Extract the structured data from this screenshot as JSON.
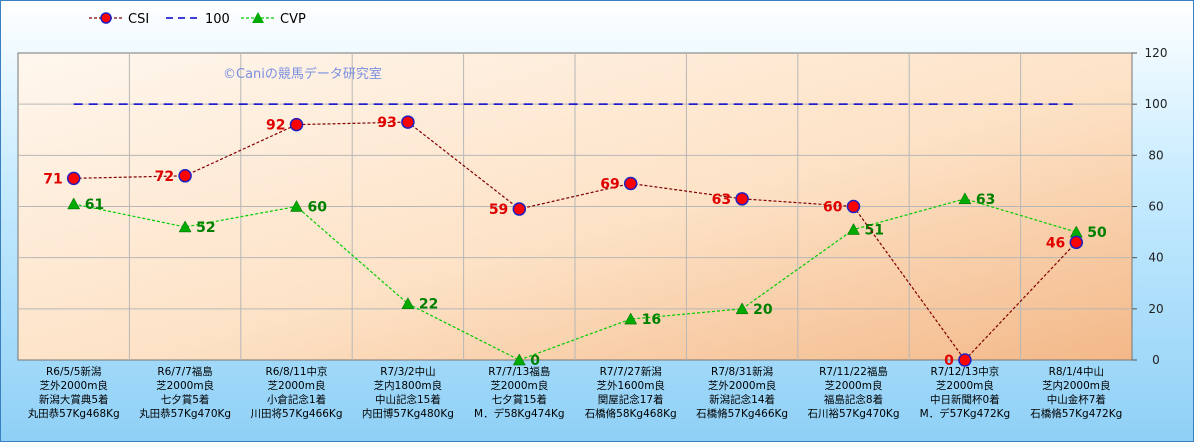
{
  "chart_data": {
    "type": "line",
    "watermark": "©Caniの競馬データ研究室",
    "legend": [
      "CSI",
      "100",
      "CVP"
    ],
    "ylim": [
      0,
      120
    ],
    "yticks": [
      0,
      20,
      40,
      60,
      80,
      100,
      120
    ],
    "legend_placement": "top-left",
    "grid": true,
    "categories": [
      [
        "R6/5/5新潟",
        "芝外2000m良",
        "新潟大賞典5着",
        "丸田恭57Kg468Kg"
      ],
      [
        "R6/7/7福島",
        "芝2000m良",
        "七夕賞5着",
        "丸田恭57Kg470Kg"
      ],
      [
        "R6/8/11中京",
        "芝2000m良",
        "小倉記念1着",
        "川田将57Kg466Kg"
      ],
      [
        "R7/3/2中山",
        "芝内1800m良",
        "中山記念15着",
        "内田博57Kg480Kg"
      ],
      [
        "R7/7/13福島",
        "芝2000m良",
        "七夕賞15着",
        "M．デ58Kg474Kg"
      ],
      [
        "R7/7/27新潟",
        "芝外1600m良",
        "関屋記念17着",
        "石橋脩58Kg468Kg"
      ],
      [
        "R7/8/31新潟",
        "芝外2000m良",
        "新潟記念14着",
        "石橋脩57Kg466Kg"
      ],
      [
        "R7/11/22福島",
        "芝2000m良",
        "福島記念8着",
        "石川裕57Kg470Kg"
      ],
      [
        "R7/12/13中京",
        "芝2000m良",
        "中日新聞杯0着",
        "M．デ57Kg472Kg"
      ],
      [
        "R8/1/4中山",
        "芝内2000m良",
        "中山金杯7着",
        "石橋脩57Kg472Kg"
      ]
    ],
    "series": [
      {
        "name": "CSI",
        "values": [
          71,
          72,
          92,
          93,
          59,
          69,
          63,
          60,
          0,
          46
        ],
        "color": "#800000",
        "marker_fill": "#ff0000",
        "marker_edge": "#2020c0"
      },
      {
        "name": "100",
        "values": [
          100,
          100,
          100,
          100,
          100,
          100,
          100,
          100,
          100,
          100
        ],
        "color": "#0000cc"
      },
      {
        "name": "CVP",
        "values": [
          61,
          52,
          60,
          22,
          0,
          16,
          20,
          51,
          63,
          50
        ],
        "color": "#00cc00",
        "marker_fill": "#00aa00"
      }
    ]
  }
}
